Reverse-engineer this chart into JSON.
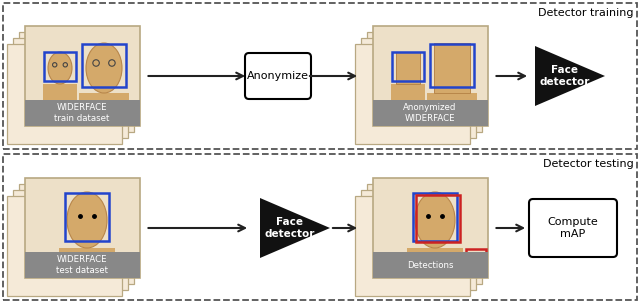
{
  "bg_color": "#ffffff",
  "card_bg": "#f5ead8",
  "card_border": "#b8a882",
  "card_inner_bg": "#ede0c8",
  "skin_color": "#d4a96a",
  "skin_dark": "#b8864a",
  "sand_color": "#c8a060",
  "gray_label_bg": "#888888",
  "gray_label_color": "#ffffff",
  "blue_box": "#2244cc",
  "red_box": "#cc2222",
  "arrow_color": "#222222",
  "dashed_color": "#555555",
  "triangle_color": "#111111",
  "title_top": "Detector training",
  "title_bottom": "Detector testing",
  "label_train": "WIDERFACE\ntrain dataset",
  "label_anon": "Anonymized\nWIDERFACE",
  "label_test": "WIDERFACE\ntest dataset",
  "label_detections": "Detections",
  "label_anonymize": "Anonymize",
  "label_face_det": "Face\ndetector",
  "label_compute": "Compute\nmAP"
}
